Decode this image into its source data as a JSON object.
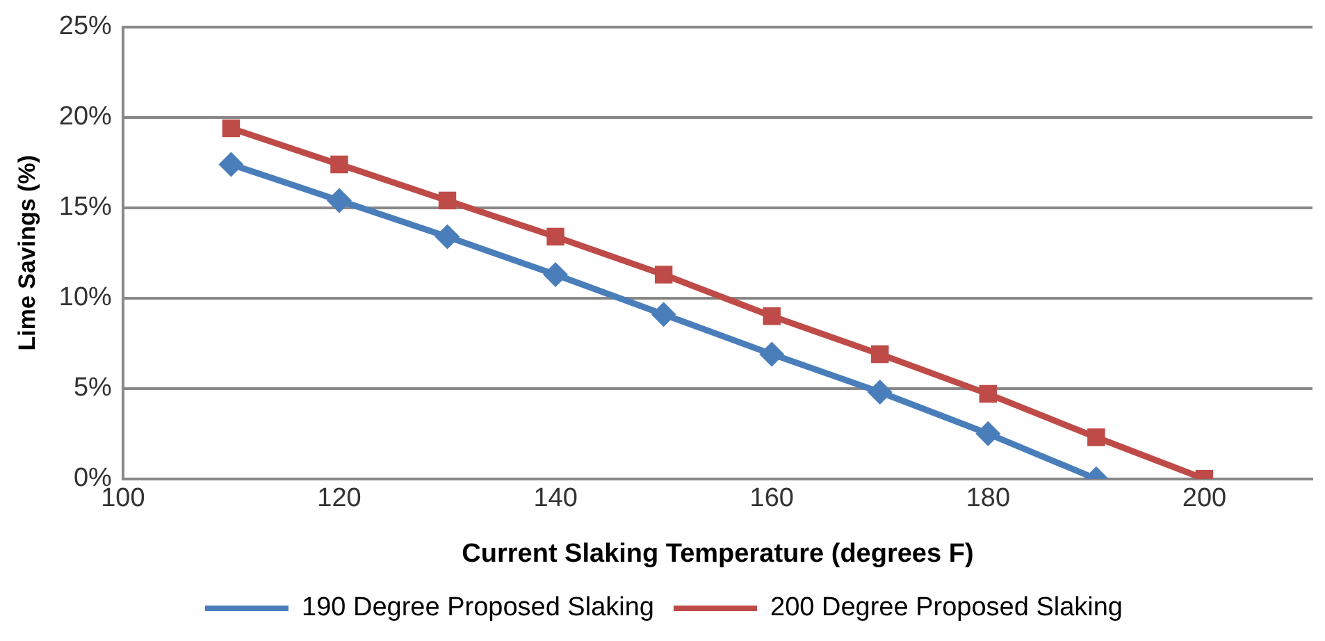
{
  "chart_data": {
    "type": "line",
    "xlabel": "Current Slaking Temperature (degrees F)",
    "ylabel": "Lime Savings (%)",
    "x": [
      110,
      120,
      130,
      140,
      150,
      160,
      170,
      180,
      190,
      200
    ],
    "series": [
      {
        "name": "190 Degree Proposed Slaking",
        "color": "#4a7ebb",
        "marker": "diamond",
        "values": [
          17.4,
          15.4,
          13.4,
          11.3,
          9.1,
          6.9,
          4.8,
          2.5,
          0,
          null
        ]
      },
      {
        "name": "200 Degree Proposed Slaking",
        "color": "#be4b48",
        "marker": "square",
        "values": [
          19.4,
          17.4,
          15.4,
          13.4,
          11.3,
          9.0,
          6.9,
          4.7,
          2.3,
          0
        ]
      }
    ],
    "xlim": [
      100,
      210
    ],
    "xticks": [
      100,
      120,
      140,
      160,
      180,
      200
    ],
    "ylim": [
      0,
      25
    ],
    "yticks": [
      {
        "value": 0,
        "label": "0%"
      },
      {
        "value": 5,
        "label": "5%"
      },
      {
        "value": 10,
        "label": "10%"
      },
      {
        "value": 15,
        "label": "15%"
      },
      {
        "value": 20,
        "label": "20%"
      },
      {
        "value": 25,
        "label": "25%"
      }
    ],
    "grid": "y",
    "legend": "bottom",
    "line_style": "solid"
  }
}
